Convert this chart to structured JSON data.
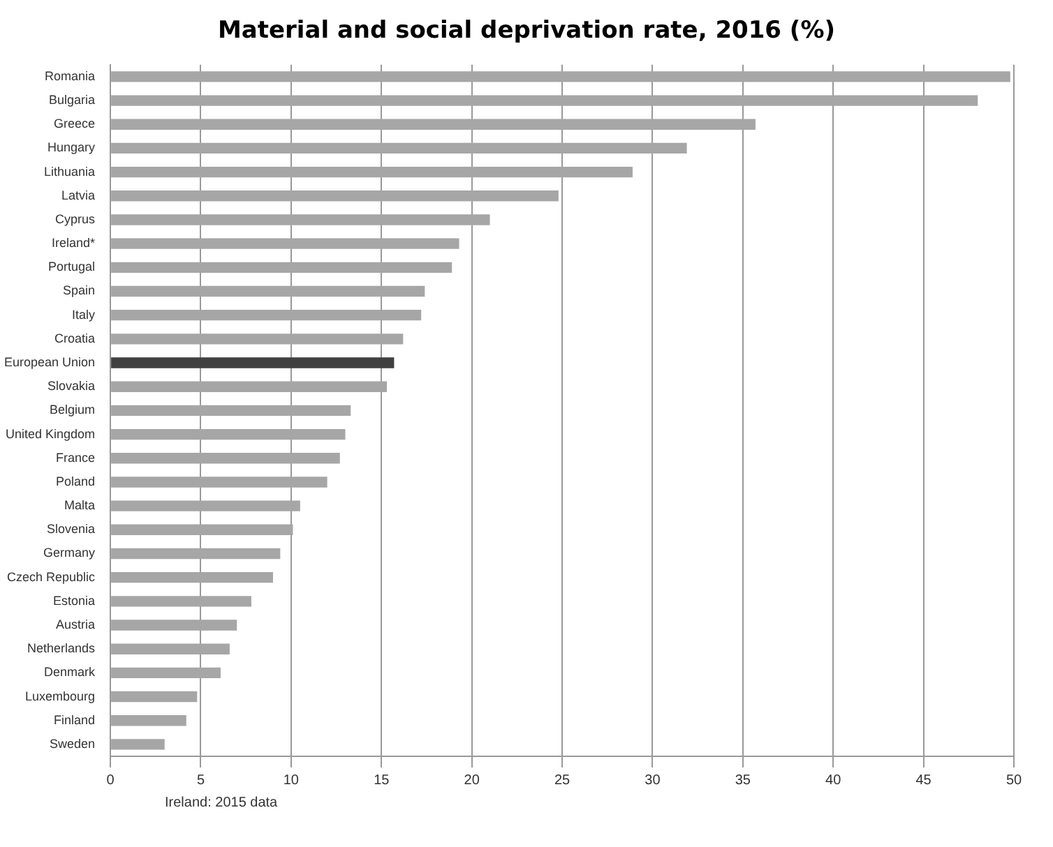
{
  "chart_data": {
    "type": "bar",
    "orientation": "horizontal",
    "title": "Material and social deprivation rate, 2016 (%)",
    "categories": [
      "Romania",
      "Bulgaria",
      "Greece",
      "Hungary",
      "Lithuania",
      "Latvia",
      "Cyprus",
      "Ireland*",
      "Portugal",
      "Spain",
      "Italy",
      "Croatia",
      "European Union",
      "Slovakia",
      "Belgium",
      "United Kingdom",
      "France",
      "Poland",
      "Malta",
      "Slovenia",
      "Germany",
      "Czech Republic",
      "Estonia",
      "Austria",
      "Netherlands",
      "Denmark",
      "Luxembourg",
      "Finland",
      "Sweden"
    ],
    "values": [
      49.8,
      48.0,
      35.7,
      31.9,
      28.9,
      24.8,
      21.0,
      19.3,
      18.9,
      17.4,
      17.2,
      16.2,
      15.7,
      15.3,
      13.3,
      13.0,
      12.7,
      12.0,
      10.5,
      10.1,
      9.4,
      9.0,
      7.8,
      7.0,
      6.6,
      6.1,
      4.8,
      4.2,
      3.0
    ],
    "colors": [
      "#a6a6a6",
      "#a6a6a6",
      "#a6a6a6",
      "#a6a6a6",
      "#a6a6a6",
      "#a6a6a6",
      "#a6a6a6",
      "#a6a6a6",
      "#a6a6a6",
      "#a6a6a6",
      "#a6a6a6",
      "#a6a6a6",
      "#404040",
      "#a6a6a6",
      "#a6a6a6",
      "#a6a6a6",
      "#a6a6a6",
      "#a6a6a6",
      "#a6a6a6",
      "#a6a6a6",
      "#a6a6a6",
      "#a6a6a6",
      "#a6a6a6",
      "#a6a6a6",
      "#a6a6a6",
      "#a6a6a6",
      "#a6a6a6",
      "#a6a6a6",
      "#a6a6a6"
    ],
    "xlim": [
      0,
      50
    ],
    "xticks": [
      0,
      5,
      10,
      15,
      20,
      25,
      30,
      35,
      40,
      45,
      50
    ],
    "grid": "x",
    "legend": false,
    "annotations": [
      "Ireland: 2015 data"
    ]
  }
}
